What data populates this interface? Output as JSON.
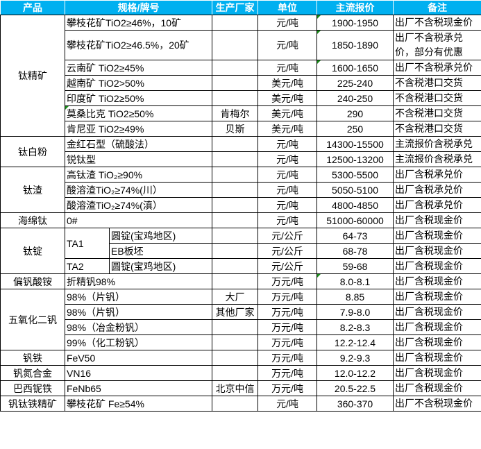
{
  "header": {
    "product": "产品",
    "spec": "规格/牌号",
    "maker": "生产厂家",
    "unit": "单位",
    "price": "主流报价",
    "note": "备注"
  },
  "colors": {
    "header_bg": "#00b0f0",
    "header_text": "#ffffff",
    "cell_marker": "#1a8a1a"
  },
  "groups": [
    {
      "product": "钛精矿",
      "items": [
        {
          "spec": "攀枝花矿TiO2≥46%，10矿",
          "maker": "",
          "unit": "元/吨",
          "price": "1900-1950",
          "note": "出厂不含税现金价"
        },
        {
          "spec": "攀枝花矿TiO2≥46.5%，20矿",
          "maker": "",
          "unit": "元/吨",
          "price": "1850-1890",
          "note": "出厂不含税承兑价，部分有优惠"
        },
        {
          "spec": "云南矿 TiO2≥45%",
          "maker": "",
          "unit": "元/吨",
          "price": "1600-1650",
          "note": "出厂不含税承兑价"
        },
        {
          "spec": "越南矿 TiO2>50%",
          "maker": "",
          "unit": "美元/吨",
          "price": "225-240",
          "note": "不含税港口交货"
        },
        {
          "spec": "印度矿 TiO2≥50%",
          "maker": "",
          "unit": "美元/吨",
          "price": "240-250",
          "note": "不含税港口交货"
        },
        {
          "spec": "莫桑比克 TiO2≥50%",
          "maker": "肯梅尔",
          "unit": "美元/吨",
          "price": "290",
          "note": "不含税港口交货"
        },
        {
          "spec": "肯尼亚 TiO2≥49%",
          "maker": "贝斯",
          "unit": "美元/吨",
          "price": "250",
          "note": "不含税港口交货"
        }
      ]
    },
    {
      "product": "钛白粉",
      "items": [
        {
          "spec": "金红石型（硫酸法）",
          "maker": "",
          "unit": "元/吨",
          "price": "14300-15500",
          "note": "主流报价含税承兑"
        },
        {
          "spec": "锐钛型",
          "maker": "",
          "unit": "元/吨",
          "price": "12500-13200",
          "note": "主流报价含税承兑"
        }
      ]
    },
    {
      "product": "钛渣",
      "items": [
        {
          "spec": "高钛渣 TiO₂≥90%",
          "maker": "",
          "unit": "元/吨",
          "price": "5300-5500",
          "note": "出厂含税承兑价"
        },
        {
          "spec": "酸溶渣TiO₂≥74%(川）",
          "maker": "",
          "unit": "元/吨",
          "price": "5050-5100",
          "note": "出厂含税承兑价"
        },
        {
          "spec": "酸溶渣TiO₂≥74%(滇）",
          "maker": "",
          "unit": "元/吨",
          "price": "4800-4850",
          "note": "出厂含税承兑价"
        }
      ]
    },
    {
      "product": "海绵钛",
      "items": [
        {
          "spec": "0#",
          "maker": "",
          "unit": "元/吨",
          "price": "51000-60000",
          "note": "出厂含税现金价"
        }
      ]
    },
    {
      "product": "钛锭",
      "items": [
        {
          "grade": "TA1",
          "spec": "圆锭(宝鸡地区)",
          "maker": "",
          "unit": "元/公斤",
          "price": "64-73",
          "note": "出厂含税现金价"
        },
        {
          "grade": "TA1",
          "spec": "EB板坯",
          "maker": "",
          "unit": "元/公斤",
          "price": "68-78",
          "note": "出厂含税现金价"
        },
        {
          "grade": "TA2",
          "spec": "圆锭(宝鸡地区)",
          "maker": "",
          "unit": "元/公斤",
          "price": "59-68",
          "note": "出厂含税现金价"
        }
      ]
    },
    {
      "product": "偏钒酸铵",
      "items": [
        {
          "spec": "折精钒98%",
          "maker": "",
          "unit": "万元/吨",
          "price": "8.0-8.1",
          "note": "出厂含税现金价"
        }
      ]
    },
    {
      "product": "五氧化二钒",
      "items": [
        {
          "spec": "98%（片钒）",
          "maker": "大厂",
          "unit": "万元/吨",
          "price": "8.85",
          "note": "出厂含税现金价"
        },
        {
          "spec": "98%（片钒）",
          "maker": "其他厂家",
          "unit": "万元/吨",
          "price": "7.9-8.0",
          "note": "出厂含税现金价"
        },
        {
          "spec": "98%（冶金粉钒）",
          "maker": "",
          "unit": "万元/吨",
          "price": "8.2-8.3",
          "note": "出厂含税现金价"
        },
        {
          "spec": "99%（化工粉钒）",
          "maker": "",
          "unit": "万元/吨",
          "price": "12.2-12.4",
          "note": "出厂含税现金价"
        }
      ]
    },
    {
      "product": "钒铁",
      "items": [
        {
          "spec": "FeV50",
          "maker": "",
          "unit": "万元/吨",
          "price": "9.2-9.3",
          "note": "出厂含税现金价"
        }
      ]
    },
    {
      "product": "钒氮合金",
      "items": [
        {
          "spec": "VN16",
          "maker": "",
          "unit": "万元/吨",
          "price": "12.0-12.2",
          "note": "出厂含税现金价"
        }
      ]
    },
    {
      "product": "巴西铌铁",
      "items": [
        {
          "spec": "FeNb65",
          "maker": "北京中信",
          "unit": "万元/吨",
          "price": "20.5-22.5",
          "note": "出厂含税现金价"
        }
      ]
    },
    {
      "product": "钒钛铁精矿",
      "items": [
        {
          "spec": "攀枝花矿 Fe≥54%",
          "maker": "",
          "unit": "元/吨",
          "price": "360-370",
          "note": "出厂不含税现金价"
        }
      ]
    }
  ]
}
